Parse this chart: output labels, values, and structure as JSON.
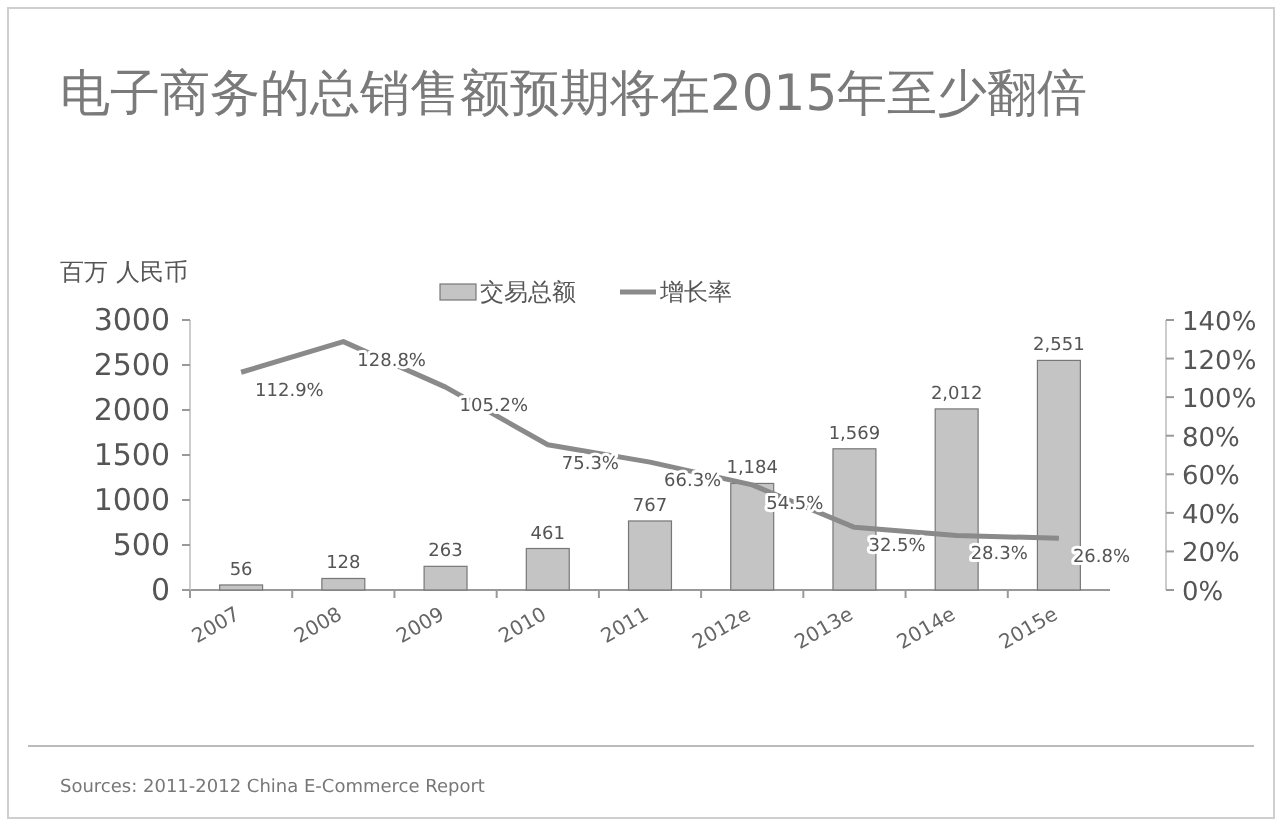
{
  "chart_data": {
    "type": "bar",
    "title": "电子商务的总销售额预期将在2015年至少翻倍",
    "ylabel": "百万 人民币",
    "categories": [
      "2007",
      "2008",
      "2009",
      "2010",
      "2011",
      "2012e",
      "2013e",
      "2014e",
      "2015e"
    ],
    "series": [
      {
        "name": "交易总额",
        "color": "#c4c4c4",
        "values": [
          56,
          128,
          263,
          461,
          767,
          1184,
          1569,
          2012,
          2551
        ],
        "value_labels": [
          "56",
          "128",
          "263",
          "461",
          "767",
          "1,184",
          "1,569",
          "2,012",
          "2,551"
        ]
      },
      {
        "name": "增长率",
        "type": "line",
        "axis": "y2",
        "color": "#8a8a8a",
        "values": [
          112.9,
          128.8,
          105.2,
          75.3,
          66.3,
          54.5,
          32.5,
          28.3,
          26.8
        ],
        "value_labels": [
          "112.9%",
          "128.8%",
          "105.2%",
          "75.3%",
          "66.3%",
          "54.5%",
          "32.5%",
          "28.3%",
          "26.8%"
        ]
      }
    ],
    "ylim": [
      0,
      3000
    ],
    "yticks": [
      0,
      500,
      1000,
      1500,
      2000,
      2500,
      3000
    ],
    "y2lim": [
      0,
      140
    ],
    "y2ticks": [
      {
        "value": 0,
        "label": "0%"
      },
      {
        "value": 20,
        "label": "20%"
      },
      {
        "value": 40,
        "label": "40%"
      },
      {
        "value": 60,
        "label": "60%"
      },
      {
        "value": 80,
        "label": "80%"
      },
      {
        "value": 100,
        "label": "100%"
      },
      {
        "value": 120,
        "label": "120%"
      },
      {
        "value": 140,
        "label": "140%"
      }
    ],
    "legend": "top",
    "grid": false,
    "annotations": [
      "Sources: 2011-2012 China E-Commerce Report"
    ]
  }
}
